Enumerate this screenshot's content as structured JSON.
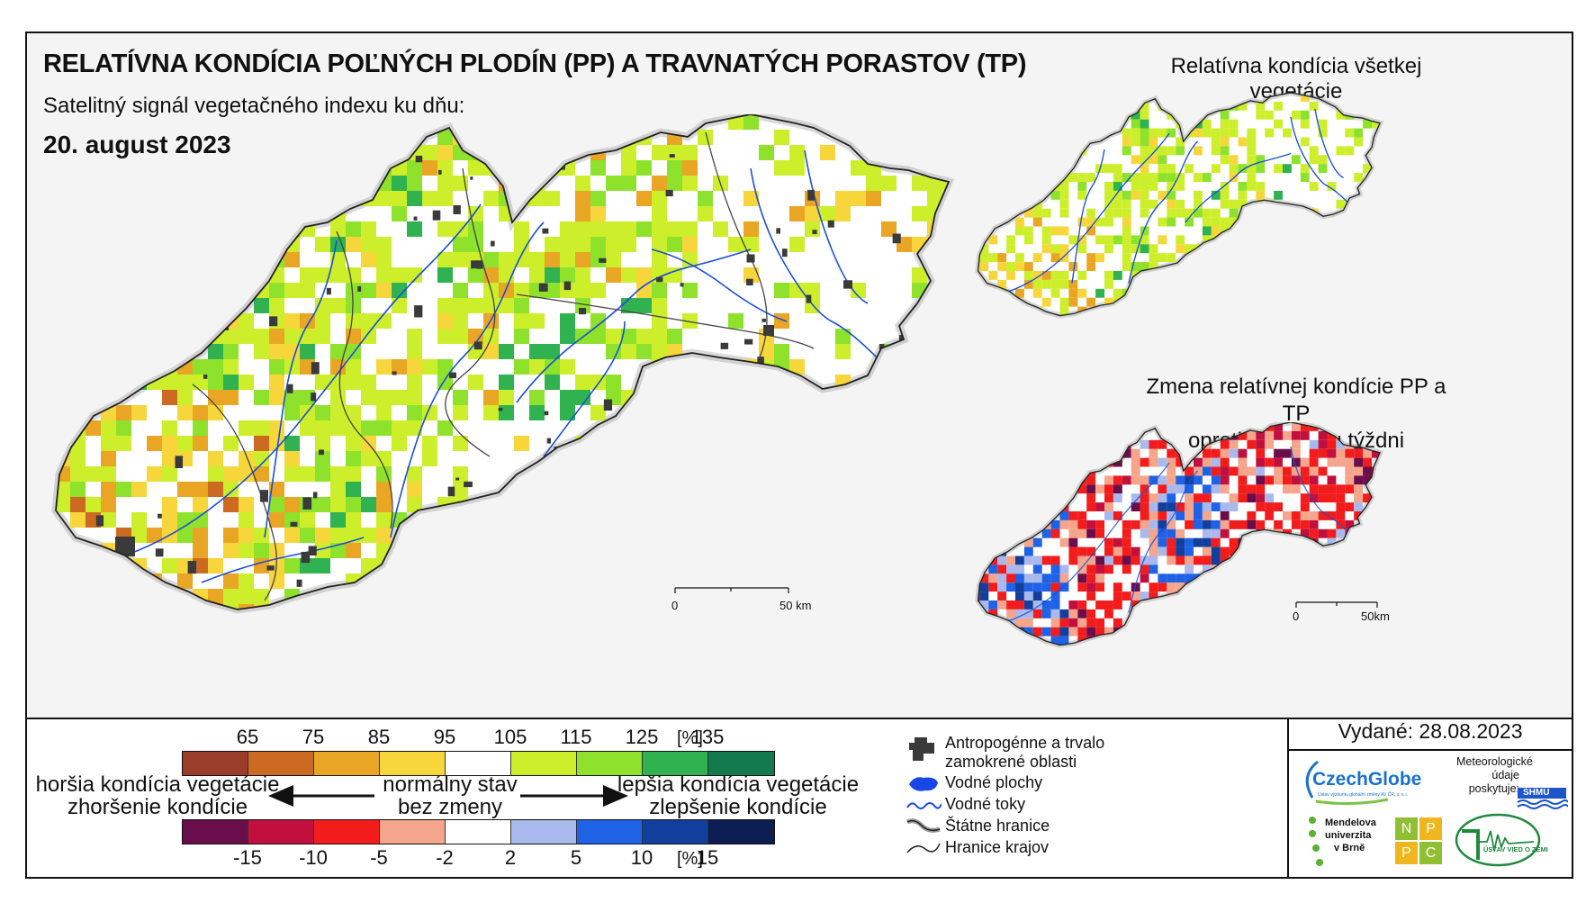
{
  "title": "RELATÍVNA KONDÍCIA POĽNÝCH PLODÍN (PP) A TRAVNATÝCH PORASTOV (TP)",
  "subtitle": "Satelitný signál vegetačného indexu ku dňu:",
  "date": "20. august 2023",
  "main_map": {
    "scale": {
      "zero": "0",
      "end": "50 km"
    }
  },
  "inset_vegetation": {
    "title": "Relatívna kondícia všetkej vegetácie"
  },
  "inset_change": {
    "title_line1": "Zmena relatívnej kondície PP a TP",
    "title_line2": "oproti minulému týždni",
    "scale": {
      "zero": "0",
      "end": "50km"
    }
  },
  "legend_condition": {
    "ticks": [
      "65",
      "75",
      "85",
      "95",
      "105",
      "115",
      "125",
      "135"
    ],
    "unit": "[%]",
    "colors": [
      "#9b3d2b",
      "#cc6a22",
      "#e8a624",
      "#f7d63c",
      "#ffffff",
      "#cdee2a",
      "#8ee22c",
      "#2fb24f",
      "#127a4d"
    ]
  },
  "legend_change": {
    "ticks": [
      "-15",
      "-10",
      "-5",
      "-2",
      "2",
      "5",
      "10",
      "15"
    ],
    "unit": "[%]",
    "colors": [
      "#6b0d4a",
      "#c2103e",
      "#f21c1c",
      "#f5a58c",
      "#ffffff",
      "#a9b9ee",
      "#1f62e6",
      "#123f9e",
      "#0b1d52"
    ]
  },
  "left_label": {
    "line1": "horšia kondícia vegetácie",
    "line2": "zhoršenie kondície"
  },
  "center_label": {
    "line1": "normálny stav",
    "line2": "bez zmeny"
  },
  "right_label": {
    "line1": "lepšia kondícia vegetácie",
    "line2": "zlepšenie kondície"
  },
  "symbols": {
    "anthropogenic": "Antropogénne a trvalo zamokrené oblasti",
    "anthropogenic_line1": "Antropogénne a trvalo",
    "anthropogenic_line2": "zamokrené oblasti",
    "water_bodies": "Vodné plochy",
    "water_courses": "Vodné toky",
    "state_border": "Štátne hranice",
    "region_border": "Hranice krajov"
  },
  "issued": "Vydané: 28.08.2023",
  "logos": {
    "czechglobe": "CzechGlobe",
    "czechglobe_sub": "Ústav výzkumu globální změny AV ČR, v. v. i.",
    "meteo_line1": "Meteorologické",
    "meteo_line2": "údaje",
    "meteo_line3": "poskytuje:",
    "shmu": "SHMU",
    "mendel_line1": "Mendelova",
    "mendel_line2": "univerzita",
    "mendel_line3": "v Brně",
    "nppc": [
      "N",
      "P",
      "P",
      "C"
    ],
    "uvz": "ÚSTAV VIED O ZEMI"
  }
}
